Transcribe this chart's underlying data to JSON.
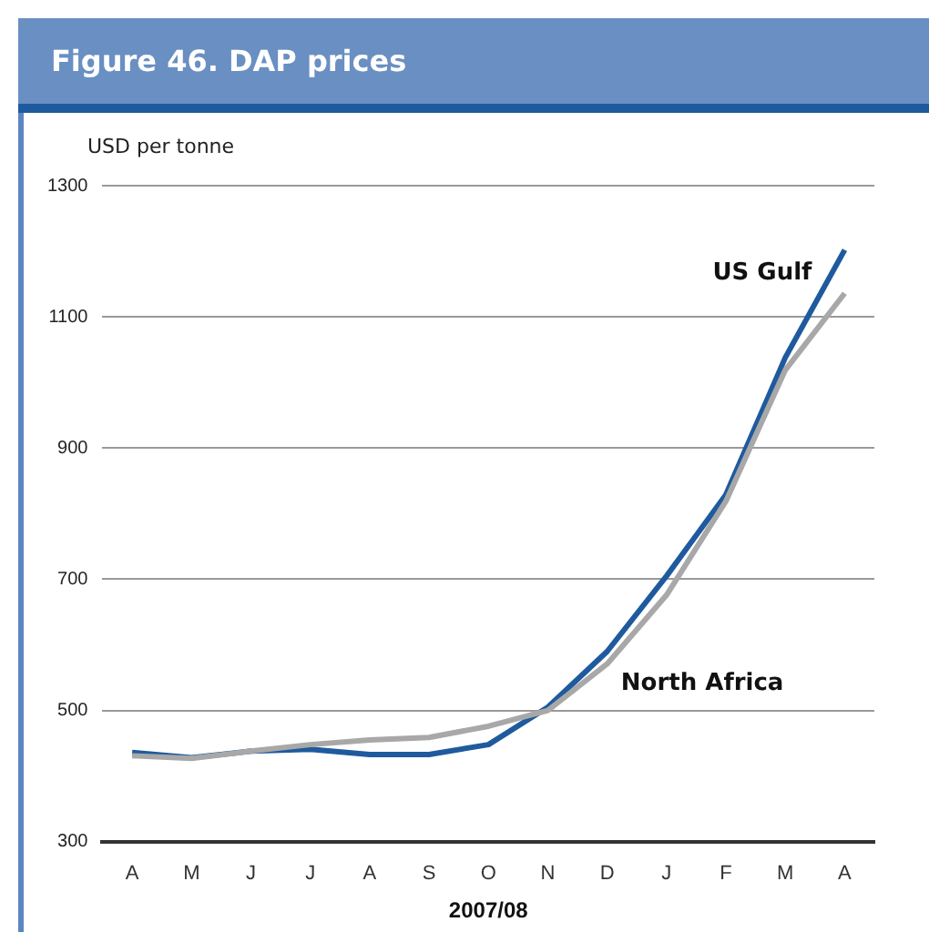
{
  "chart_data": {
    "type": "line",
    "title": "Figure 46. DAP prices",
    "ylabel": "USD per tonne",
    "xlabel": "2007/08",
    "categories": [
      "A",
      "M",
      "J",
      "J",
      "A",
      "S",
      "O",
      "N",
      "D",
      "J",
      "F",
      "M",
      "A"
    ],
    "series": [
      {
        "name": "North Africa",
        "color": "#a8a8a8",
        "values": [
          431,
          427,
          438,
          448,
          455,
          459,
          476,
          500,
          571,
          676,
          819,
          1019,
          1136
        ]
      },
      {
        "name": "US Gulf",
        "color": "#1f5a9e",
        "values": [
          436,
          428,
          438,
          441,
          433,
          433,
          448,
          505,
          590,
          705,
          829,
          1038,
          1202
        ]
      }
    ],
    "ylim": [
      300,
      1300
    ],
    "yticks": [
      300,
      500,
      700,
      900,
      1100,
      1300
    ],
    "grid": "y",
    "legend": false,
    "marker": "none",
    "line_style": "solid"
  }
}
